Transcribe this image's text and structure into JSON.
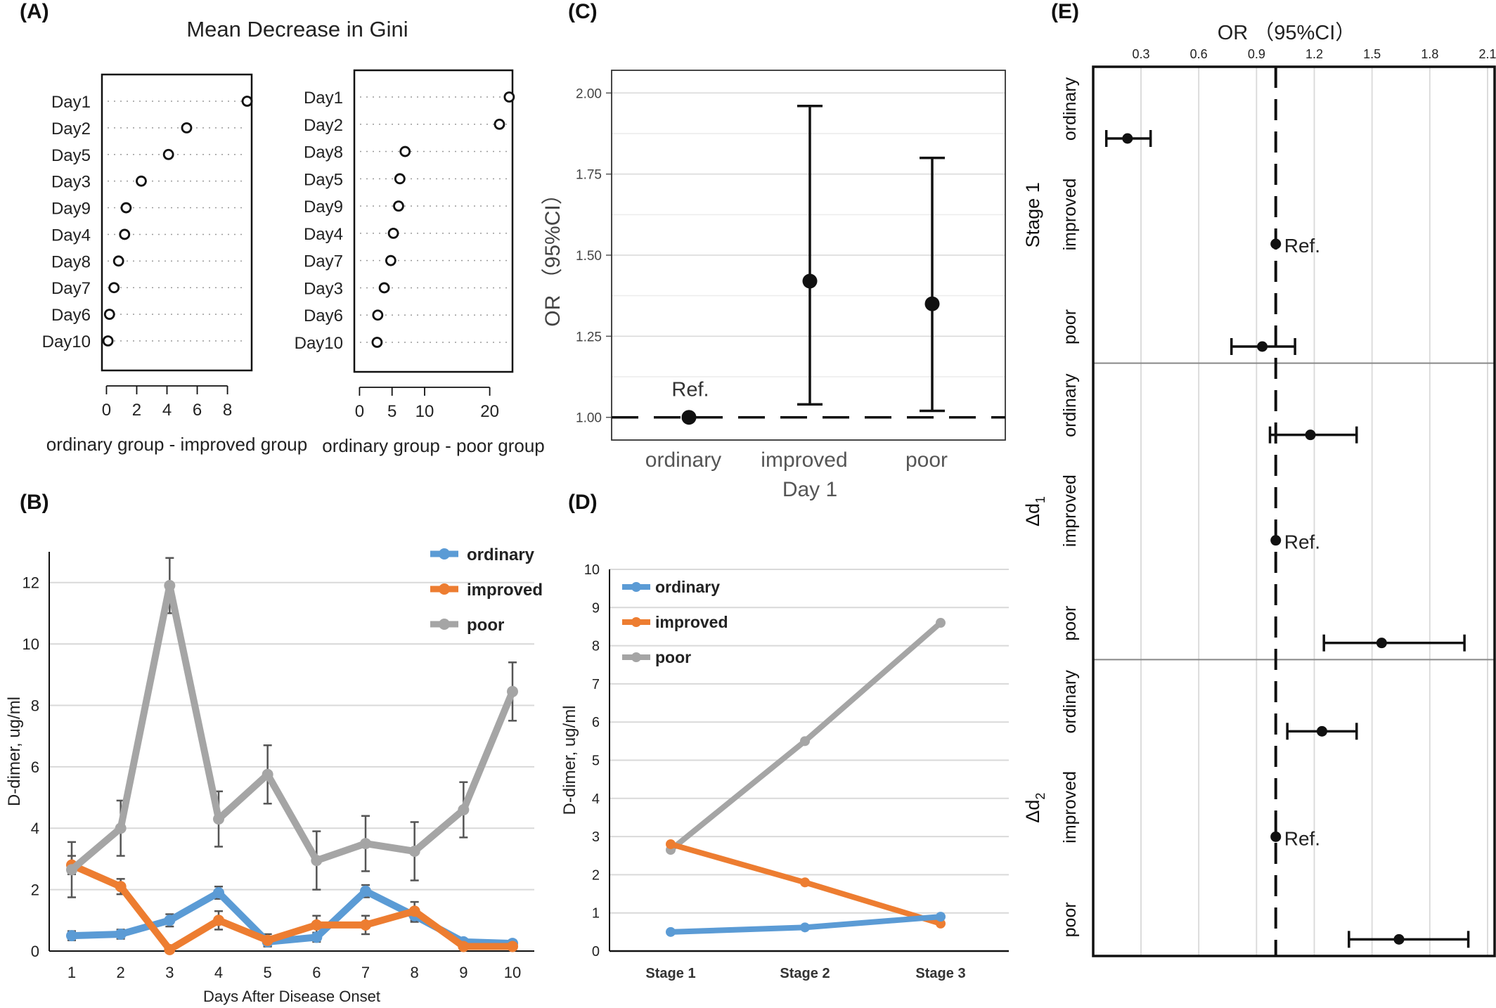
{
  "panels": {
    "a": {
      "letter": "(A)",
      "title": "Mean Decrease in Gini"
    },
    "b": {
      "letter": "(B)"
    },
    "c": {
      "letter": "(C)"
    },
    "d": {
      "letter": "(D)"
    },
    "e": {
      "letter": "(E)"
    }
  },
  "colors": {
    "ordinary": "#5b9bd5",
    "improved": "#ed7d31",
    "poor": "#a5a5a5",
    "black": "#111111",
    "grid": "#d9d9d9"
  },
  "chart_data": [
    {
      "id": "A1",
      "type": "scatter",
      "xlabel": "ordinary group - improved group",
      "xticks": [
        0,
        2,
        4,
        6,
        8
      ],
      "xlim": [
        -0.3,
        9.6
      ],
      "categories": [
        "Day1",
        "Day2",
        "Day5",
        "Day3",
        "Day9",
        "Day4",
        "Day8",
        "Day7",
        "Day6",
        "Day10"
      ],
      "values": [
        9.3,
        5.3,
        4.1,
        2.3,
        1.3,
        1.2,
        0.8,
        0.5,
        0.2,
        0.1
      ],
      "grid": "dotted rows"
    },
    {
      "id": "A2",
      "type": "scatter",
      "xlabel": "ordinary group - poor group",
      "xticks": [
        0,
        5,
        10,
        20
      ],
      "xlim": [
        -0.8,
        23.5
      ],
      "categories": [
        "Day1",
        "Day2",
        "Day8",
        "Day5",
        "Day9",
        "Day4",
        "Day7",
        "Day3",
        "Day6",
        "Day10"
      ],
      "values": [
        23.0,
        21.5,
        7.0,
        6.2,
        6.0,
        5.2,
        4.8,
        3.8,
        2.8,
        2.7
      ],
      "grid": "dotted rows"
    },
    {
      "id": "B",
      "type": "line",
      "xlabel": "Days After Disease Onset",
      "ylabel": "D-dimer, ug/ml",
      "x": [
        1,
        2,
        3,
        4,
        5,
        6,
        7,
        8,
        9,
        10
      ],
      "ylim": [
        0,
        13
      ],
      "yticks": [
        0,
        2,
        4,
        6,
        8,
        10,
        12
      ],
      "legend": "top-right",
      "series": [
        {
          "name": "ordinary",
          "color": "#5b9bd5",
          "values": [
            0.5,
            0.55,
            1.0,
            1.9,
            0.3,
            0.45,
            1.95,
            1.15,
            0.3,
            0.25
          ],
          "err": [
            0.15,
            0.15,
            0.2,
            0.2,
            0.15,
            0.15,
            0.2,
            0.2,
            0.1,
            0.1
          ]
        },
        {
          "name": "improved",
          "color": "#ed7d31",
          "values": [
            2.8,
            2.1,
            0.05,
            1.0,
            0.35,
            0.85,
            0.85,
            1.3,
            0.15,
            0.15
          ],
          "err": [
            0.3,
            0.25,
            0.1,
            0.3,
            0.2,
            0.3,
            0.3,
            0.3,
            0.1,
            0.1
          ]
        },
        {
          "name": "poor",
          "color": "#a5a5a5",
          "values": [
            2.65,
            4.0,
            11.9,
            4.3,
            5.75,
            2.95,
            3.5,
            3.25,
            4.6,
            8.45
          ],
          "err": [
            0.9,
            0.9,
            0.9,
            0.9,
            0.95,
            0.95,
            0.9,
            0.95,
            0.9,
            0.95
          ]
        }
      ]
    },
    {
      "id": "C",
      "type": "scatter",
      "xlabel": "Day 1",
      "ylabel": "OR （95%CI）",
      "categories": [
        "ordinary",
        "improved",
        "poor"
      ],
      "ylim": [
        0.93,
        2.07
      ],
      "yticks": [
        "1.00",
        "1.25",
        "1.50",
        "1.75",
        "2.00"
      ],
      "points": [
        {
          "category": "ordinary",
          "or": 1.0,
          "lower": null,
          "upper": null,
          "annotation": "Ref."
        },
        {
          "category": "improved",
          "or": 1.42,
          "lower": 1.04,
          "upper": 1.96
        },
        {
          "category": "poor",
          "or": 1.35,
          "lower": 1.02,
          "upper": 1.8
        }
      ],
      "reference_line": 1.0
    },
    {
      "id": "D",
      "type": "line",
      "ylabel": "D-dimer, ug/ml",
      "categories": [
        "Stage 1",
        "Stage 2",
        "Stage 3"
      ],
      "ylim": [
        0,
        10
      ],
      "yticks": [
        0,
        1,
        2,
        3,
        4,
        5,
        6,
        7,
        8,
        9,
        10
      ],
      "legend": "top-left",
      "series": [
        {
          "name": "ordinary",
          "color": "#5b9bd5",
          "values": [
            0.5,
            0.62,
            0.9
          ]
        },
        {
          "name": "improved",
          "color": "#ed7d31",
          "values": [
            2.8,
            1.8,
            0.72
          ]
        },
        {
          "name": "poor",
          "color": "#a5a5a5",
          "values": [
            2.65,
            5.5,
            8.6
          ]
        }
      ]
    },
    {
      "id": "E",
      "type": "scatter",
      "title": "OR （95%CI）",
      "xticks": [
        "0.3",
        "0.6",
        "0.9",
        "1.2",
        "1.5",
        "1.8",
        "2.1"
      ],
      "xlim": [
        0,
        2.1
      ],
      "reference_line": 1.0,
      "groups": [
        {
          "label": "Stage 1",
          "sub": "",
          "rows": [
            {
              "name": "ordinary",
              "or": 0.23,
              "lower": 0.12,
              "upper": 0.35
            },
            {
              "name": "improved",
              "or": 1.0,
              "ref": "Ref."
            },
            {
              "name": "poor",
              "or": 0.93,
              "lower": 0.77,
              "upper": 1.1
            }
          ]
        },
        {
          "label": "Δd",
          "sub": "1",
          "rows": [
            {
              "name": "ordinary",
              "or": 1.18,
              "lower": 0.97,
              "upper": 1.42
            },
            {
              "name": "improved",
              "or": 1.0,
              "ref": "Ref."
            },
            {
              "name": "poor",
              "or": 1.55,
              "lower": 1.25,
              "upper": 1.98
            }
          ]
        },
        {
          "label": "Δd",
          "sub": "2",
          "rows": [
            {
              "name": "ordinary",
              "or": 1.24,
              "lower": 1.06,
              "upper": 1.42
            },
            {
              "name": "improved",
              "or": 1.0,
              "ref": "Ref."
            },
            {
              "name": "poor",
              "or": 1.64,
              "lower": 1.38,
              "upper": 2.0
            }
          ]
        }
      ]
    }
  ]
}
